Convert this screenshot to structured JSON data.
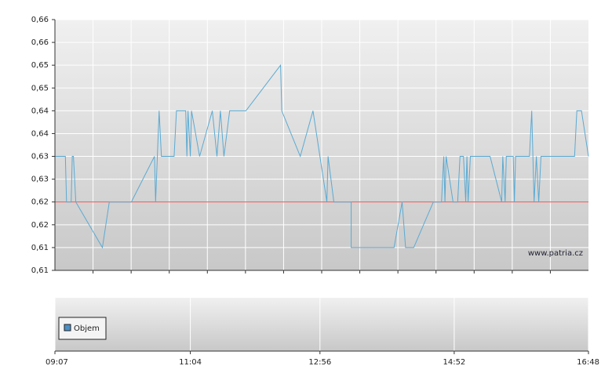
{
  "chart_data": [
    {
      "type": "line",
      "x": [
        "09:07",
        "09:16",
        "09:17",
        "09:21",
        "09:22",
        "09:23",
        "09:25",
        "09:48",
        "09:54",
        "10:13",
        "10:33",
        "10:34",
        "10:37",
        "10:39",
        "10:50",
        "10:52",
        "11:00",
        "11:01",
        "11:02",
        "11:04",
        "11:05",
        "11:12",
        "11:23",
        "11:27",
        "11:30",
        "11:33",
        "11:38",
        "11:52",
        "12:22",
        "12:23",
        "12:39",
        "12:50",
        "13:02",
        "13:03",
        "13:08",
        "13:23",
        "13:23",
        "14:00",
        "14:07",
        "14:10",
        "14:17",
        "14:34",
        "14:41",
        "14:43",
        "14:44",
        "14:45",
        "14:51",
        "14:55",
        "14:57",
        "15:00",
        "15:02",
        "15:03",
        "15:04",
        "15:06",
        "15:23",
        "15:33",
        "15:34",
        "15:36",
        "15:37",
        "15:43",
        "15:44",
        "15:45",
        "15:57",
        "15:59",
        "16:01",
        "16:03",
        "16:05",
        "16:07",
        "16:36",
        "16:38",
        "16:42",
        "16:48"
      ],
      "values": [
        0.635,
        0.635,
        0.625,
        0.625,
        0.635,
        0.635,
        0.625,
        0.615,
        0.625,
        0.625,
        0.635,
        0.625,
        0.645,
        0.635,
        0.635,
        0.645,
        0.645,
        0.635,
        0.645,
        0.635,
        0.645,
        0.635,
        0.645,
        0.635,
        0.645,
        0.635,
        0.645,
        0.645,
        0.655,
        0.645,
        0.635,
        0.645,
        0.625,
        0.635,
        0.625,
        0.625,
        0.615,
        0.615,
        0.625,
        0.615,
        0.615,
        0.625,
        0.625,
        0.635,
        0.625,
        0.635,
        0.625,
        0.625,
        0.635,
        0.635,
        0.625,
        0.635,
        0.625,
        0.635,
        0.635,
        0.625,
        0.635,
        0.625,
        0.635,
        0.635,
        0.625,
        0.635,
        0.635,
        0.645,
        0.625,
        0.635,
        0.625,
        0.635,
        0.635,
        0.645,
        0.645,
        0.635
      ],
      "color": "#5aaad2",
      "reference_line": 0.625,
      "reference_color": "#e05050",
      "xlim": [
        "09:07",
        "16:48"
      ],
      "ylim": [
        0.61,
        0.665
      ],
      "yticks": [
        {
          "value": 0.61,
          "label": "0,61"
        },
        {
          "value": 0.615,
          "label": "0,61"
        },
        {
          "value": 0.62,
          "label": "0,62"
        },
        {
          "value": 0.625,
          "label": "0,62"
        },
        {
          "value": 0.63,
          "label": "0,63"
        },
        {
          "value": 0.635,
          "label": "0,63"
        },
        {
          "value": 0.64,
          "label": "0,64"
        },
        {
          "value": 0.645,
          "label": "0,64"
        },
        {
          "value": 0.65,
          "label": "0,65"
        },
        {
          "value": 0.655,
          "label": "0,65"
        },
        {
          "value": 0.66,
          "label": "0,66"
        },
        {
          "value": 0.665,
          "label": "0,66"
        }
      ],
      "watermark": "www.patria.cz",
      "grid": true
    },
    {
      "type": "bar",
      "series": [
        {
          "name": "Objem",
          "color": "#4a90c8",
          "values": []
        }
      ],
      "xlim": [
        "09:07",
        "16:48"
      ],
      "xticks": [
        "09:07",
        "11:04",
        "12:56",
        "14:52",
        "16:48"
      ],
      "grid": true
    }
  ]
}
